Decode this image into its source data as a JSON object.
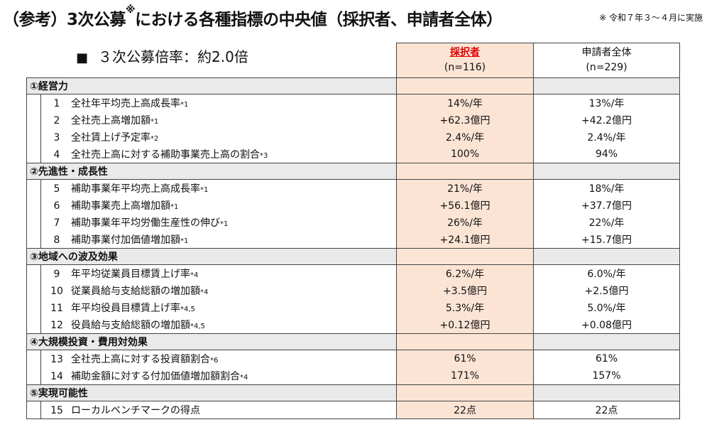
{
  "title_main": "（参考）3次公募",
  "title_mark": "※",
  "title_rest": "における各種指標の中央値（採択者、申請者全体）",
  "note": "※ 令和７年３～４月に実施",
  "ratio": {
    "bullet": "■",
    "text": "３次公募倍率：約2.0倍"
  },
  "columns": {
    "accepted": {
      "label": "採択者",
      "n": "(n=116)"
    },
    "applicants": {
      "label": "申請者全体",
      "n": "(n=229)"
    }
  },
  "sections": [
    {
      "label": "①経営力",
      "items": [
        {
          "num": "1",
          "label": "全社年平均売上高成長率",
          "ann": "*1",
          "accepted": "14%/年",
          "applicants": "13%/年"
        },
        {
          "num": "2",
          "label": "全社売上高増加額",
          "ann": "*1",
          "accepted": "+62.3億円",
          "applicants": "+42.2億円"
        },
        {
          "num": "3",
          "label": "全社賃上げ予定率",
          "ann": "*2",
          "accepted": "2.4%/年",
          "applicants": "2.4%/年"
        },
        {
          "num": "4",
          "label": "全社売上高に対する補助事業売上高の割合",
          "ann": "*3",
          "accepted": "100%",
          "applicants": "94%"
        }
      ]
    },
    {
      "label": "②先進性・成長性",
      "items": [
        {
          "num": "5",
          "label": "補助事業年平均売上高成長率",
          "ann": "*1",
          "accepted": "21%/年",
          "applicants": "18%/年"
        },
        {
          "num": "6",
          "label": "補助事業売上高増加額",
          "ann": "*1",
          "accepted": "+56.1億円",
          "applicants": "+37.7億円"
        },
        {
          "num": "7",
          "label": "補助事業年平均労働生産性の伸び",
          "ann": "*1",
          "accepted": "26%/年",
          "applicants": "22%/年"
        },
        {
          "num": "8",
          "label": "補助事業付加価値増加額",
          "ann": "*1",
          "accepted": "+24.1億円",
          "applicants": "+15.7億円"
        }
      ]
    },
    {
      "label": "③地域への波及効果",
      "items": [
        {
          "num": "9",
          "label": "年平均従業員目標賃上げ率",
          "ann": "*4",
          "accepted": "6.2%/年",
          "applicants": "6.0%/年"
        },
        {
          "num": "10",
          "label": "従業員給与支給総額の増加額",
          "ann": "*4",
          "accepted": "+3.5億円",
          "applicants": "+2.5億円"
        },
        {
          "num": "11",
          "label": "年平均役員目標賃上げ率",
          "ann": "*4,5",
          "accepted": "5.3%/年",
          "applicants": "5.0%/年"
        },
        {
          "num": "12",
          "label": "役員給与支給総額の増加額",
          "ann": "*4,5",
          "accepted": "+0.12億円",
          "applicants": "+0.08億円"
        }
      ]
    },
    {
      "label": "④大規模投資・費用対効果",
      "items": [
        {
          "num": "13",
          "label": "全社売上高に対する投資額割合",
          "ann": "*6",
          "accepted": "61%",
          "applicants": "61%"
        },
        {
          "num": "14",
          "label": "補助金額に対する付加価値増加額割合",
          "ann": "*4",
          "accepted": "171%",
          "applicants": "157%"
        }
      ]
    },
    {
      "label": "⑤実現可能性",
      "items": [
        {
          "num": "15",
          "label": "ローカルベンチマークの得点",
          "ann": "",
          "accepted": "22点",
          "applicants": "22点"
        }
      ]
    }
  ]
}
